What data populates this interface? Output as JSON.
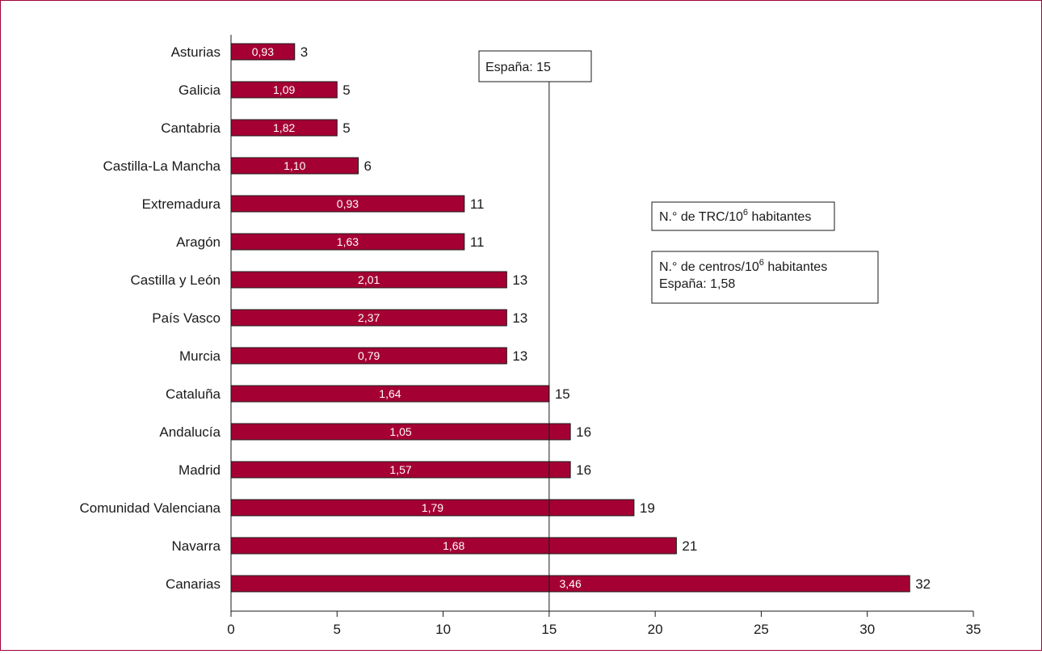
{
  "chart_data": {
    "type": "bar",
    "orientation": "horizontal",
    "categories": [
      "Asturias",
      "Galicia",
      "Cantabria",
      "Castilla-La Mancha",
      "Extremadura",
      "Aragón",
      "Castilla y León",
      "País Vasco",
      "Murcia",
      "Cataluña",
      "Andalucía",
      "Madrid",
      "Comunidad Valenciana",
      "Navarra",
      "Canarias"
    ],
    "values": [
      3,
      5,
      5,
      6,
      11,
      11,
      13,
      13,
      13,
      15,
      16,
      16,
      19,
      21,
      32
    ],
    "inner_labels": [
      "0,93",
      "1,09",
      "1,82",
      "1,10",
      "0,93",
      "1,63",
      "2,01",
      "2,37",
      "0,79",
      "1,64",
      "1,05",
      "1,57",
      "1,79",
      "1,68",
      "3,46"
    ],
    "xlim": [
      0,
      35
    ],
    "xticks": [
      0,
      5,
      10,
      15,
      20,
      25,
      30,
      35
    ],
    "bar_color": "#a50034",
    "reference_line": {
      "value": 15,
      "label": "España: 15"
    },
    "legend": {
      "trc": {
        "prefix": "N.° de TRC/10",
        "sup": "6",
        "suffix": " habitantes"
      },
      "centros": {
        "prefix": "N.° de centros/10",
        "sup": "6",
        "suffix": " habitantes",
        "line2": "España: 1,58"
      }
    }
  }
}
